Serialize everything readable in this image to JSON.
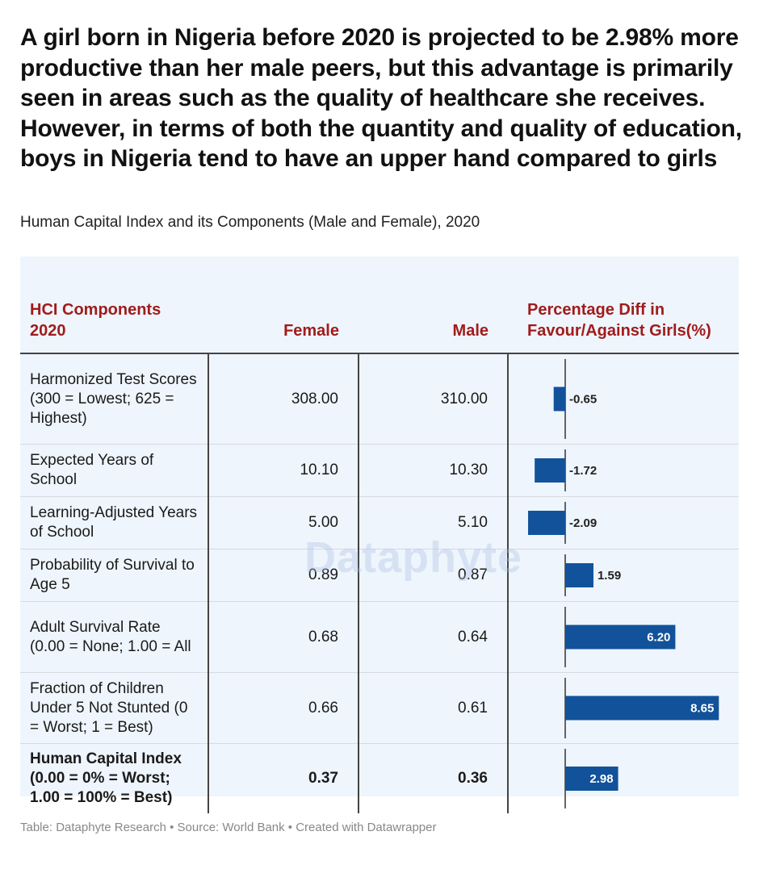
{
  "headline": "A girl born in Nigeria before 2020 is projected to be 2.98% more productive than her male peers, but this advantage is primarily seen in areas such as the quality of healthcare she receives. However, in terms of both the quantity and quality of education, boys in Nigeria tend to have an upper hand compared to girls",
  "subtitle": "Human Capital Index and its Components (Male and Female), 2020",
  "table": {
    "headers": {
      "component": "HCI Components 2020",
      "female": "Female",
      "male": "Male",
      "diff": "Percentage Diff in Favour/Against Girls(%)"
    }
  },
  "chart_data": {
    "type": "table",
    "columns": [
      "HCI Components 2020",
      "Female",
      "Male",
      "Percentage Diff in Favour/Against Girls(%)"
    ],
    "rows": [
      {
        "label": "Harmonized Test Scores (300 = Lowest; 625 = Highest)",
        "female": "308.00",
        "male": "310.00",
        "diff": -0.65,
        "diff_label": "-0.65",
        "bold": false
      },
      {
        "label": "Expected Years of School",
        "female": "10.10",
        "male": "10.30",
        "diff": -1.72,
        "diff_label": "-1.72",
        "bold": false
      },
      {
        "label": "Learning-Adjusted Years of School",
        "female": "5.00",
        "male": "5.10",
        "diff": -2.09,
        "diff_label": "-2.09",
        "bold": false
      },
      {
        "label": "Probability of Survival to Age 5",
        "female": "0.89",
        "male": "0.87",
        "diff": 1.59,
        "diff_label": "1.59",
        "bold": false
      },
      {
        "label": "Adult Survival Rate (0.00 = None; 1.00 = All",
        "female": "0.68",
        "male": "0.64",
        "diff": 6.2,
        "diff_label": "6.20",
        "bold": false
      },
      {
        "label": "Fraction of Children Under 5 Not Stunted (0 = Worst; 1 = Best)",
        "female": "0.66",
        "male": "0.61",
        "diff": 8.65,
        "diff_label": "8.65",
        "bold": false
      },
      {
        "label": "Human Capital Index (0.00 = 0% = Worst; 1.00 = 100% = Best)",
        "female": "0.37",
        "male": "0.36",
        "diff": 2.98,
        "diff_label": "2.98",
        "bold": true
      }
    ],
    "diff_range": [
      -2.09,
      8.65
    ],
    "bar_color": "#12529a"
  },
  "watermark": "Dataphyte",
  "footer": "Table: Dataphyte Research • Source: World Bank • Created with Datawrapper"
}
